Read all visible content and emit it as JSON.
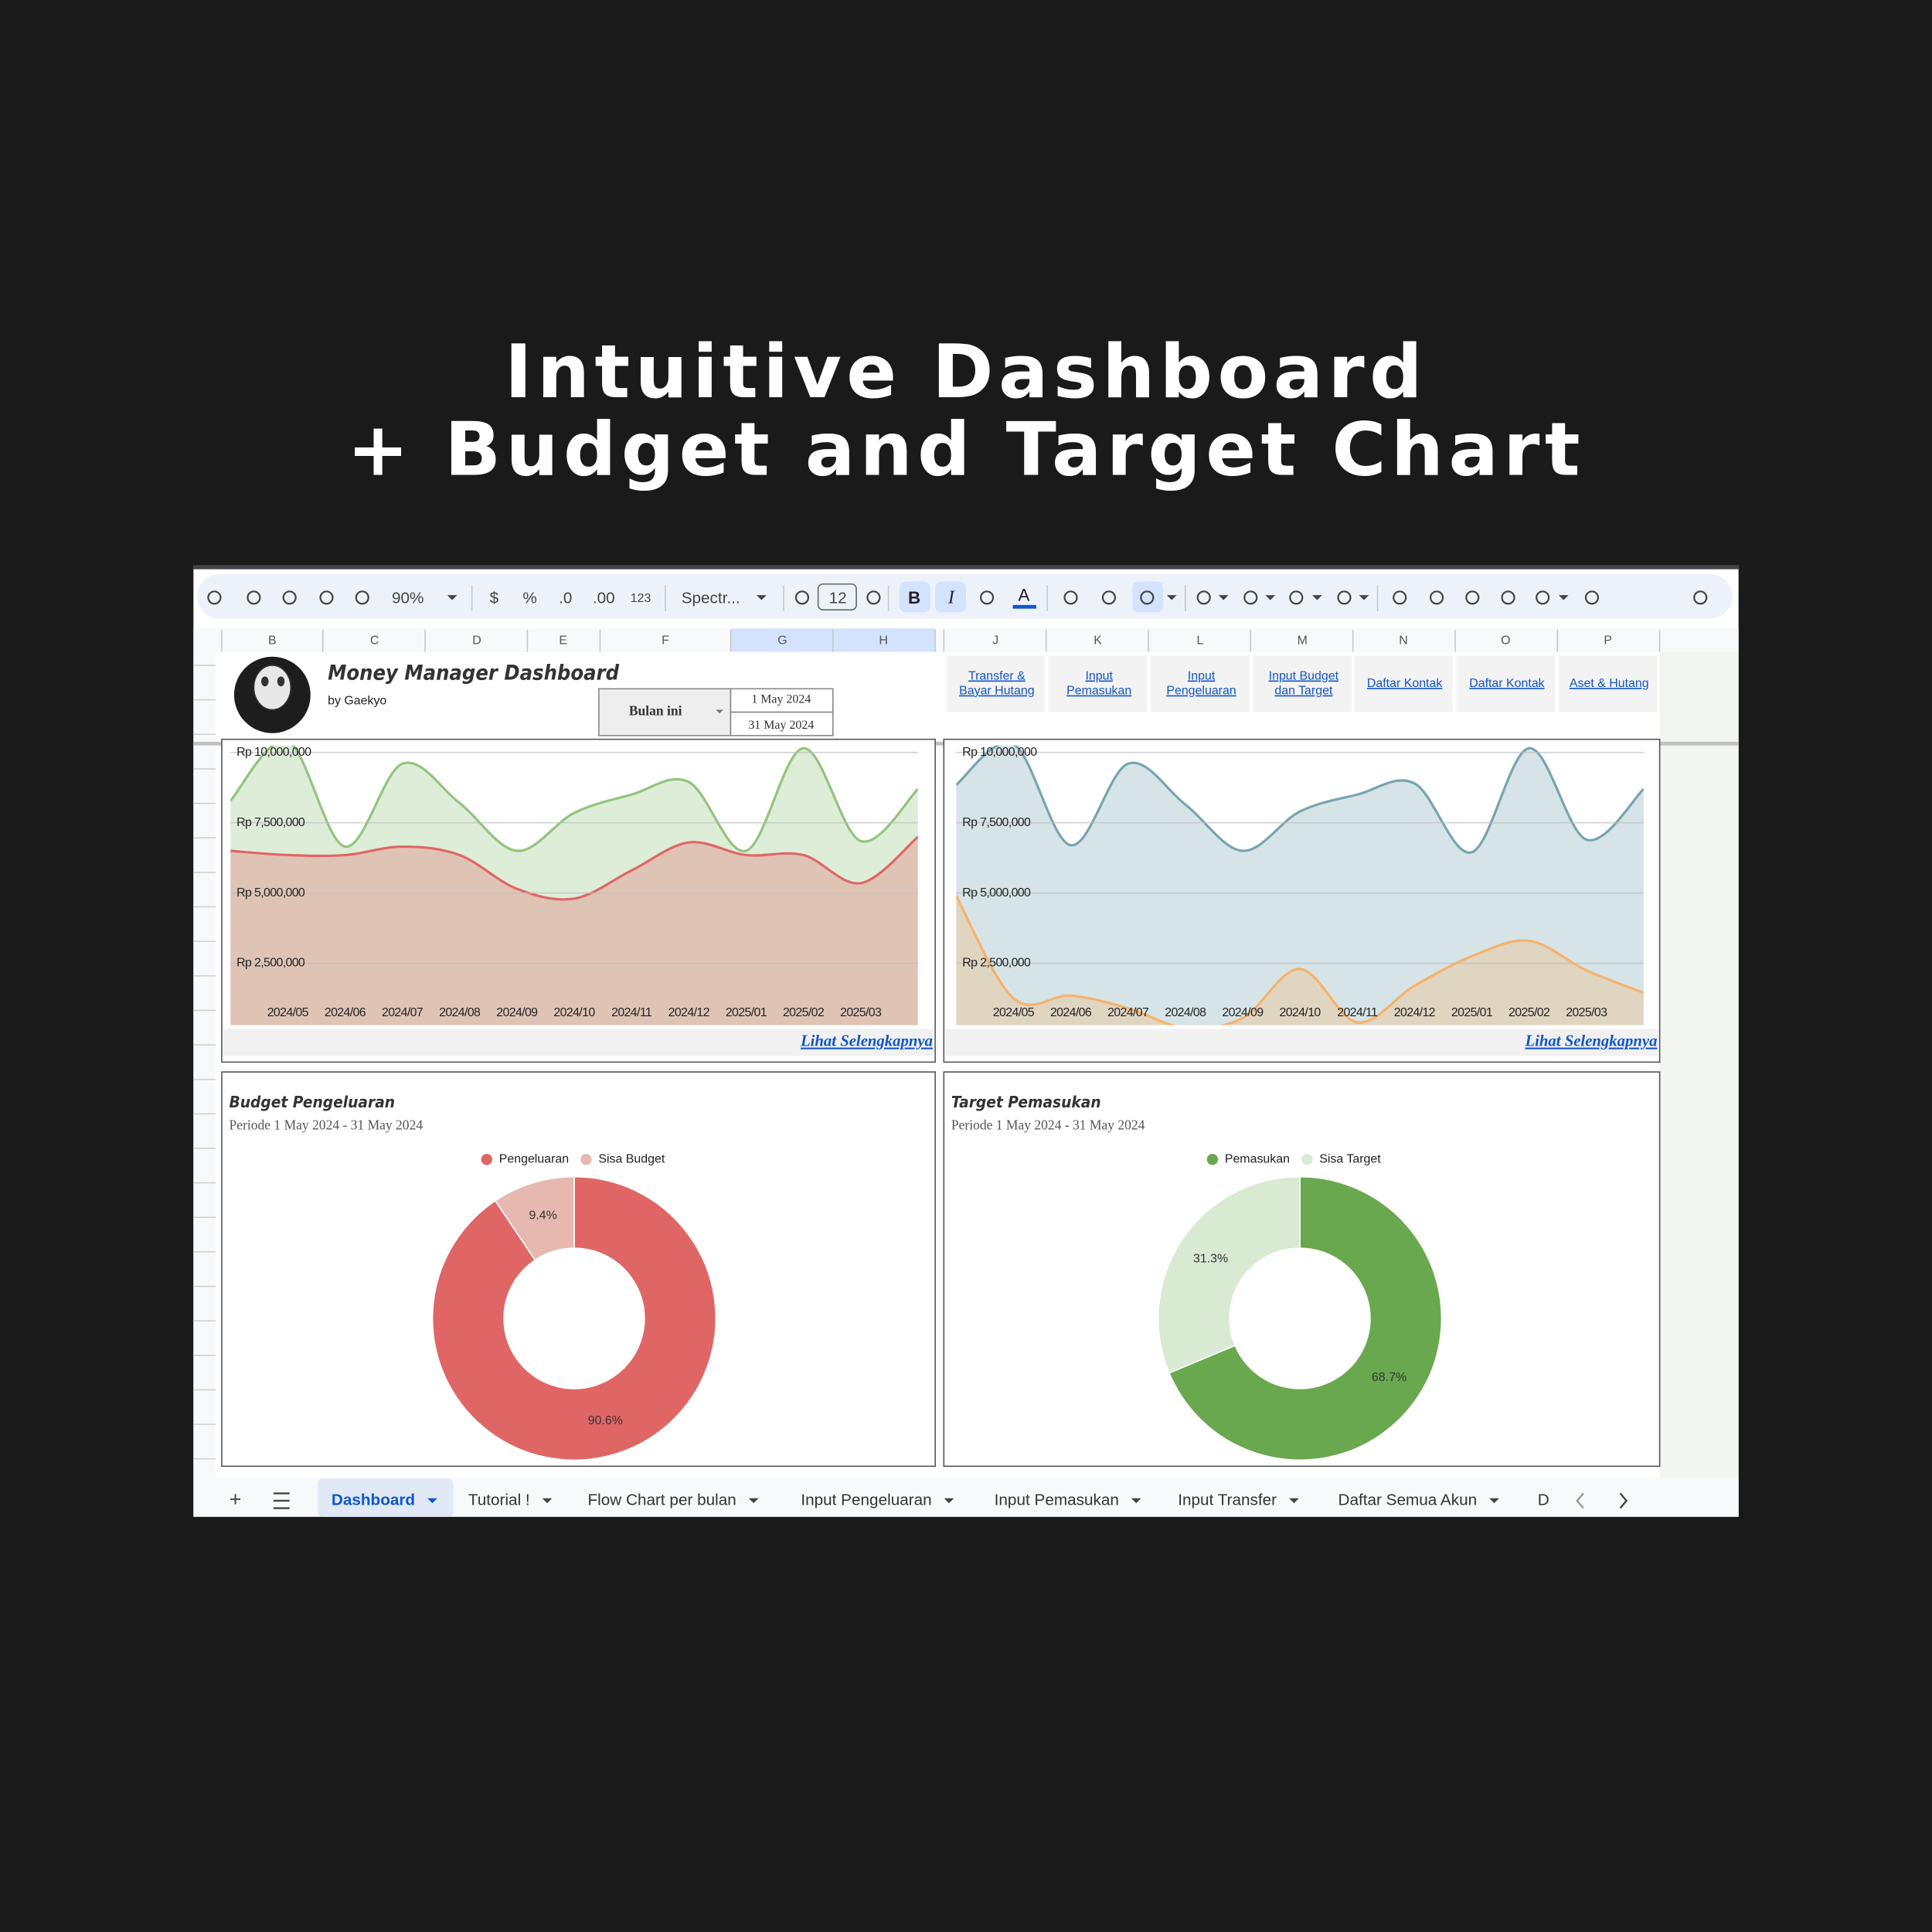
{
  "headline": [
    "Intuitive Dashboard",
    "+ Budget and Target Chart"
  ],
  "toolbar": {
    "zoom": "90%",
    "currency": "$",
    "percent": "%",
    "decrease_decimal": ".0",
    "increase_decimal": ".00",
    "number_format": "123",
    "font": "Spectr...",
    "font_size": "12",
    "bold": "B",
    "italic": "I",
    "text_color": "A"
  },
  "columns": [
    "B",
    "C",
    "D",
    "E",
    "F",
    "G",
    "H",
    "J",
    "K",
    "L",
    "M",
    "N",
    "O",
    "P"
  ],
  "sheet": {
    "title": "Money Manager Dashboard",
    "author": "by Gaekyo",
    "period_selector": "Bulan ini",
    "start_date": "1 May 2024",
    "end_date": "31 May 2024",
    "links": [
      [
        "Transfer &",
        "Bayar Hutang"
      ],
      [
        "Input",
        "Pemasukan"
      ],
      [
        "Input",
        "Pengeluaran"
      ],
      [
        "Input Budget",
        "dan Target"
      ],
      [
        "Daftar Kontak"
      ],
      [
        "Daftar Kontak"
      ],
      [
        "Aset & Hutang"
      ]
    ]
  },
  "chart_data": [
    {
      "type": "area",
      "categories": [
        null,
        "2024/05",
        "2024/06",
        "2024/07",
        "2024/08",
        "2024/09",
        "2024/10",
        "2024/11",
        "2024/12",
        "2025/01",
        "2025/02",
        "2025/03",
        null
      ],
      "ylim": [
        300000,
        10250000
      ],
      "yticks": [
        {
          "value": 2500000,
          "label": "Rp 2,500,000"
        },
        {
          "value": 5000000,
          "label": "Rp 5,000,000"
        },
        {
          "value": 7500000,
          "label": "Rp 7,500,000"
        },
        {
          "value": 10000000,
          "label": "Rp 10,000,000"
        }
      ],
      "grid": true,
      "series": [
        {
          "color": "#93c47d",
          "values": [
            8280000,
            10400000,
            6650000,
            9600000,
            8200000,
            6500000,
            7850000,
            8500000,
            8950000,
            6500000,
            10150000,
            6850000,
            8700000
          ]
        },
        {
          "color": "#e06666",
          "values": [
            6500000,
            6350000,
            6350000,
            6650000,
            6350000,
            5150000,
            4800000,
            5800000,
            6800000,
            6350000,
            6350000,
            5350000,
            7000000
          ]
        }
      ],
      "link": "Lihat Selengkapnya"
    },
    {
      "type": "area",
      "categories": [
        null,
        "2024/05",
        "2024/06",
        "2024/07",
        "2024/08",
        "2024/09",
        "2024/10",
        "2024/11",
        "2024/12",
        "2025/01",
        "2025/02",
        "2025/03",
        null
      ],
      "ylim": [
        300000,
        10250000
      ],
      "yticks": [
        {
          "value": 2500000,
          "label": "Rp 2,500,000"
        },
        {
          "value": 5000000,
          "label": "Rp 5,000,000"
        },
        {
          "value": 7500000,
          "label": "Rp 7,500,000"
        },
        {
          "value": 10000000,
          "label": "Rp 10,000,000"
        }
      ],
      "grid": true,
      "series": [
        {
          "color": "#76a5af",
          "values": [
            8850000,
            10300000,
            6700000,
            9600000,
            8150000,
            6500000,
            7900000,
            8500000,
            8900000,
            6450000,
            10150000,
            6900000,
            8700000
          ]
        },
        {
          "color": "#f6b26b",
          "values": [
            4900000,
            1250000,
            1350000,
            900000,
            200000,
            550000,
            2300000,
            400000,
            1700000,
            2750000,
            3300000,
            2250000,
            1450000
          ]
        }
      ],
      "link": "Lihat Selengkapnya"
    },
    {
      "type": "pie",
      "donut": true,
      "title": "Budget Pengeluaran",
      "subtitle": "Periode 1 May 2024 - 31 May 2024",
      "categories": [
        "Pengeluaran",
        "Sisa Budget"
      ],
      "values": [
        90.6,
        9.4
      ],
      "value_labels": [
        "90.6%",
        "9.4%"
      ],
      "colors": [
        "#e06666",
        "#e6b8af"
      ]
    },
    {
      "type": "pie",
      "donut": true,
      "title": "Target Pemasukan",
      "subtitle": "Periode 1 May 2024 - 31 May 2024",
      "categories": [
        "Pemasukan",
        "Sisa Target"
      ],
      "values": [
        68.7,
        31.3
      ],
      "value_labels": [
        "68.7%",
        "31.3%"
      ],
      "colors": [
        "#6aa84f",
        "#d9ead3"
      ]
    }
  ],
  "tabs": [
    "Dashboard",
    "Tutorial !",
    "Flow Chart per bulan",
    "Input Pengeluaran",
    "Input Pemasukan",
    "Input Transfer",
    "Daftar Semua Akun",
    "D"
  ]
}
